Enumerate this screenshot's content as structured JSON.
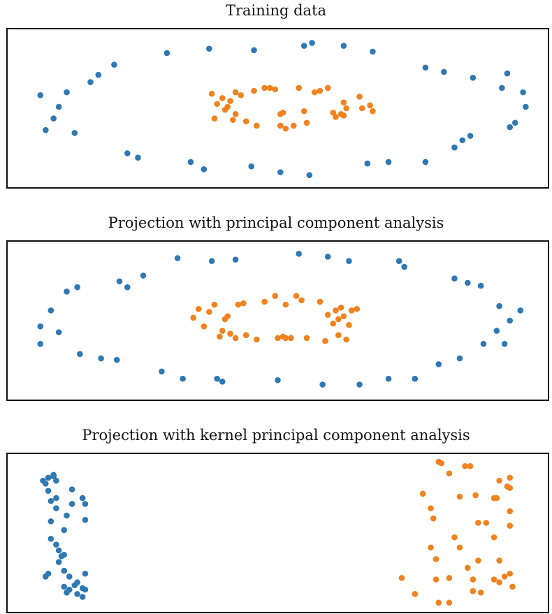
{
  "colors": {
    "outer": "#2e78b4",
    "inner": "#f0821f"
  },
  "chart_data": [
    {
      "type": "scatter",
      "title": "Training data",
      "xlim": [
        0,
        100
      ],
      "ylim": [
        0,
        100
      ],
      "series": [
        {
          "color_key": "outer",
          "points": [
            [
              5,
              59
            ],
            [
              6,
              35
            ],
            [
              7.5,
              43
            ],
            [
              8.5,
              51
            ],
            [
              10,
              61
            ],
            [
              11.5,
              33
            ],
            [
              14.5,
              68
            ],
            [
              16,
              73
            ],
            [
              19,
              80
            ],
            [
              21.5,
              19
            ],
            [
              23.5,
              16
            ],
            [
              29,
              88
            ],
            [
              33.5,
              13
            ],
            [
              36,
              8
            ],
            [
              37,
              91
            ],
            [
              45,
              10
            ],
            [
              45.5,
              90
            ],
            [
              50.5,
              6
            ],
            [
              55,
              93
            ],
            [
              56,
              4
            ],
            [
              62.5,
              93
            ],
            [
              67,
              12
            ],
            [
              68,
              89
            ],
            [
              71,
              13
            ],
            [
              78,
              13
            ],
            [
              78,
              78
            ],
            [
              81.5,
              75
            ],
            [
              83.5,
              23
            ],
            [
              85,
              28
            ],
            [
              86.5,
              31
            ],
            [
              87,
              71
            ],
            [
              92.5,
              64
            ],
            [
              93.5,
              74
            ],
            [
              94,
              37
            ],
            [
              95,
              40
            ],
            [
              96.5,
              61
            ],
            [
              97,
              51
            ],
            [
              56.5,
              95
            ]
          ]
        },
        {
          "color_key": "inner",
          "points": [
            [
              37.5,
              60
            ],
            [
              38,
              43
            ],
            [
              38.5,
              53
            ],
            [
              39.5,
              57
            ],
            [
              40,
              49
            ],
            [
              40.5,
              51
            ],
            [
              41,
              55
            ],
            [
              41.5,
              42
            ],
            [
              42,
              61
            ],
            [
              42,
              46
            ],
            [
              43,
              59
            ],
            [
              44,
              41
            ],
            [
              45.5,
              62
            ],
            [
              46,
              38
            ],
            [
              47.5,
              64
            ],
            [
              48.5,
              64
            ],
            [
              49.5,
              63
            ],
            [
              50.5,
              46
            ],
            [
              50.5,
              38
            ],
            [
              51,
              47
            ],
            [
              51.5,
              36
            ],
            [
              53,
              38
            ],
            [
              54,
              64
            ],
            [
              55,
              48
            ],
            [
              55.5,
              40
            ],
            [
              57,
              61
            ],
            [
              58,
              62
            ],
            [
              59.5,
              64
            ],
            [
              60.5,
              47
            ],
            [
              61,
              44
            ],
            [
              62,
              46
            ],
            [
              62.5,
              54
            ],
            [
              63,
              50
            ],
            [
              65.5,
              58
            ],
            [
              66,
              50
            ],
            [
              67.5,
              52
            ],
            [
              68,
              48
            ],
            [
              62.5,
              45
            ]
          ]
        }
      ]
    },
    {
      "type": "scatter",
      "title": "Projection with principal component analysis",
      "xlim": [
        0,
        100
      ],
      "ylim": [
        0,
        100
      ],
      "series": [
        {
          "color_key": "outer",
          "points": [
            [
              5,
              46
            ],
            [
              5,
              34
            ],
            [
              7,
              57
            ],
            [
              8.5,
              42
            ],
            [
              10,
              70
            ],
            [
              12,
              73
            ],
            [
              12.5,
              27
            ],
            [
              16.5,
              24
            ],
            [
              19.5,
              23
            ],
            [
              20,
              77
            ],
            [
              21.5,
              73
            ],
            [
              24.5,
              81
            ],
            [
              28,
              15
            ],
            [
              31,
              93
            ],
            [
              32,
              10
            ],
            [
              37.5,
              91
            ],
            [
              38.5,
              10
            ],
            [
              39.5,
              8
            ],
            [
              42,
              92
            ],
            [
              50,
              9
            ],
            [
              54,
              96
            ],
            [
              58.5,
              6
            ],
            [
              59.5,
              94
            ],
            [
              63.5,
              91
            ],
            [
              65.5,
              6
            ],
            [
              71,
              10
            ],
            [
              73,
              91
            ],
            [
              74,
              87
            ],
            [
              76,
              10
            ],
            [
              80.5,
              20
            ],
            [
              83.5,
              79
            ],
            [
              84.5,
              24
            ],
            [
              86,
              76
            ],
            [
              88.5,
              74
            ],
            [
              89,
              34
            ],
            [
              91.5,
              43
            ],
            [
              92,
              60
            ],
            [
              93,
              34
            ],
            [
              94,
              50
            ],
            [
              96,
              57
            ]
          ]
        },
        {
          "color_key": "inner",
          "points": [
            [
              34,
              52
            ],
            [
              35,
              58
            ],
            [
              36,
              46
            ],
            [
              37,
              56
            ],
            [
              38,
              61
            ],
            [
              39,
              39
            ],
            [
              39.5,
              43
            ],
            [
              40,
              51
            ],
            [
              40.5,
              53
            ],
            [
              41,
              41
            ],
            [
              42,
              38
            ],
            [
              42.5,
              61
            ],
            [
              43.5,
              62
            ],
            [
              44,
              40
            ],
            [
              46,
              37
            ],
            [
              47.5,
              63
            ],
            [
              49.5,
              67
            ],
            [
              50,
              38
            ],
            [
              51,
              39
            ],
            [
              51.5,
              38
            ],
            [
              51.5,
              61
            ],
            [
              52.5,
              38
            ],
            [
              53.5,
              67
            ],
            [
              54.5,
              64
            ],
            [
              55.5,
              38
            ],
            [
              58,
              63
            ],
            [
              59,
              36
            ],
            [
              59.5,
              54
            ],
            [
              60.5,
              48
            ],
            [
              61,
              57
            ],
            [
              61.5,
              40
            ],
            [
              61.5,
              51
            ],
            [
              62,
              59
            ],
            [
              62.5,
              53
            ],
            [
              63,
              37
            ],
            [
              63.5,
              47
            ],
            [
              64,
              57
            ],
            [
              65,
              58
            ]
          ]
        }
      ]
    },
    {
      "type": "scatter",
      "title": "Projection with kernel principal component analysis",
      "xlim": [
        0,
        100
      ],
      "ylim": [
        0,
        100
      ],
      "series": [
        {
          "color_key": "outer",
          "points": [
            [
              5.5,
              86
            ],
            [
              6,
              84
            ],
            [
              6,
              20
            ],
            [
              6.5,
              88
            ],
            [
              6.5,
              22
            ],
            [
              6.5,
              79
            ],
            [
              7,
              72
            ],
            [
              7,
              58
            ],
            [
              7,
              46
            ],
            [
              7.5,
              90
            ],
            [
              7.5,
              89
            ],
            [
              8,
              86
            ],
            [
              8,
              74
            ],
            [
              8,
              67
            ],
            [
              8,
              42
            ],
            [
              8.5,
              38
            ],
            [
              9,
              34
            ],
            [
              8.5,
              30
            ],
            [
              9.5,
              13
            ],
            [
              9.5,
              52
            ],
            [
              9.5,
              35
            ],
            [
              9.5,
              24
            ],
            [
              10,
              9
            ],
            [
              10,
              62
            ],
            [
              10.5,
              20
            ],
            [
              11,
              80
            ],
            [
              11,
              70
            ],
            [
              11.5,
              14
            ],
            [
              12,
              8
            ],
            [
              10.5,
              11
            ],
            [
              12,
              16
            ],
            [
              13,
              12
            ],
            [
              13.5,
              22
            ],
            [
              13.5,
              59
            ],
            [
              13.5,
              70
            ],
            [
              13,
              74
            ],
            [
              13.5,
              11
            ],
            [
              13,
              6
            ]
          ]
        },
        {
          "color_key": "inner",
          "points": [
            [
              73.5,
              19
            ],
            [
              76,
              8
            ],
            [
              77.5,
              77
            ],
            [
              79,
              67
            ],
            [
              79.5,
              60
            ],
            [
              79,
              40
            ],
            [
              80,
              32
            ],
            [
              80,
              18
            ],
            [
              80.5,
              2
            ],
            [
              80.5,
              99
            ],
            [
              81,
              98
            ],
            [
              82.5,
              91
            ],
            [
              82.5,
              19
            ],
            [
              82.5,
              2
            ],
            [
              83.5,
              47
            ],
            [
              84.5,
              75
            ],
            [
              84.5,
              40
            ],
            [
              85.5,
              96
            ],
            [
              86,
              26
            ],
            [
              86.5,
              96
            ],
            [
              87,
              18
            ],
            [
              87,
              10
            ],
            [
              88,
              31
            ],
            [
              88,
              57
            ],
            [
              87.5,
              76
            ],
            [
              88.5,
              9
            ],
            [
              89.5,
              57
            ],
            [
              91,
              74
            ],
            [
              91,
              47
            ],
            [
              91,
              18
            ],
            [
              91.5,
              74
            ],
            [
              92,
              86
            ],
            [
              92,
              31
            ],
            [
              92,
              16
            ],
            [
              93.5,
              82
            ],
            [
              93,
              20
            ],
            [
              94,
              88
            ],
            [
              94,
              22
            ],
            [
              94,
              81
            ],
            [
              94,
              65
            ],
            [
              94,
              55
            ],
            [
              94.5,
              13
            ]
          ]
        }
      ]
    }
  ]
}
